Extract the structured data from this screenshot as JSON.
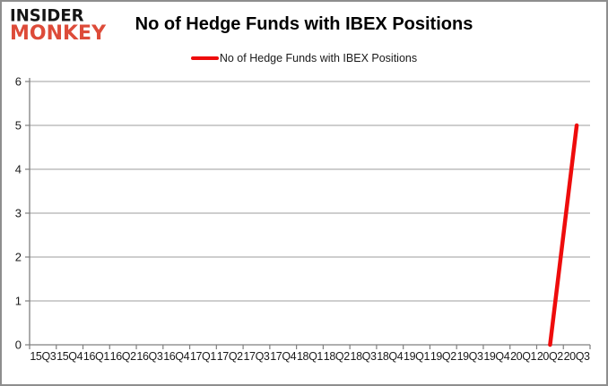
{
  "logo": {
    "line1": "INSIDER",
    "line2": "MONKEY",
    "color": "#dd4b39"
  },
  "title": "No of Hedge Funds with IBEX Positions",
  "legend": {
    "label": "No of Hedge Funds with IBEX Positions",
    "marker_color": "#ee0c0c"
  },
  "colors": {
    "series_red": "#ee0c0c",
    "gridline": "#9e9e9e",
    "axis": "#7f7f7f",
    "border": "#8e8e8e",
    "shadow_red": "#dd2c2c"
  },
  "chart_data": {
    "type": "line",
    "title": "No of Hedge Funds with IBEX Positions",
    "legend_entries": [
      "No of Hedge Funds with IBEX Positions"
    ],
    "legend_position": "top",
    "grid": true,
    "xlabel": "",
    "ylabel": "",
    "ylim": [
      0,
      6
    ],
    "ytick_step": 1,
    "yticks": [
      0,
      1,
      2,
      3,
      4,
      5,
      6
    ],
    "categories": [
      "15Q3",
      "15Q4",
      "16Q1",
      "16Q2",
      "16Q3",
      "16Q4",
      "17Q1",
      "17Q2",
      "17Q3",
      "17Q4",
      "18Q1",
      "18Q2",
      "18Q3",
      "18Q4",
      "19Q1",
      "19Q2",
      "19Q3",
      "19Q4",
      "20Q1",
      "20Q2",
      "20Q3"
    ],
    "series": [
      {
        "name": "No of Hedge Funds with IBEX Positions",
        "color": "#ee0c0c",
        "values": [
          null,
          null,
          null,
          null,
          null,
          null,
          null,
          null,
          null,
          null,
          null,
          null,
          null,
          null,
          null,
          null,
          null,
          null,
          null,
          0,
          5
        ]
      }
    ]
  }
}
